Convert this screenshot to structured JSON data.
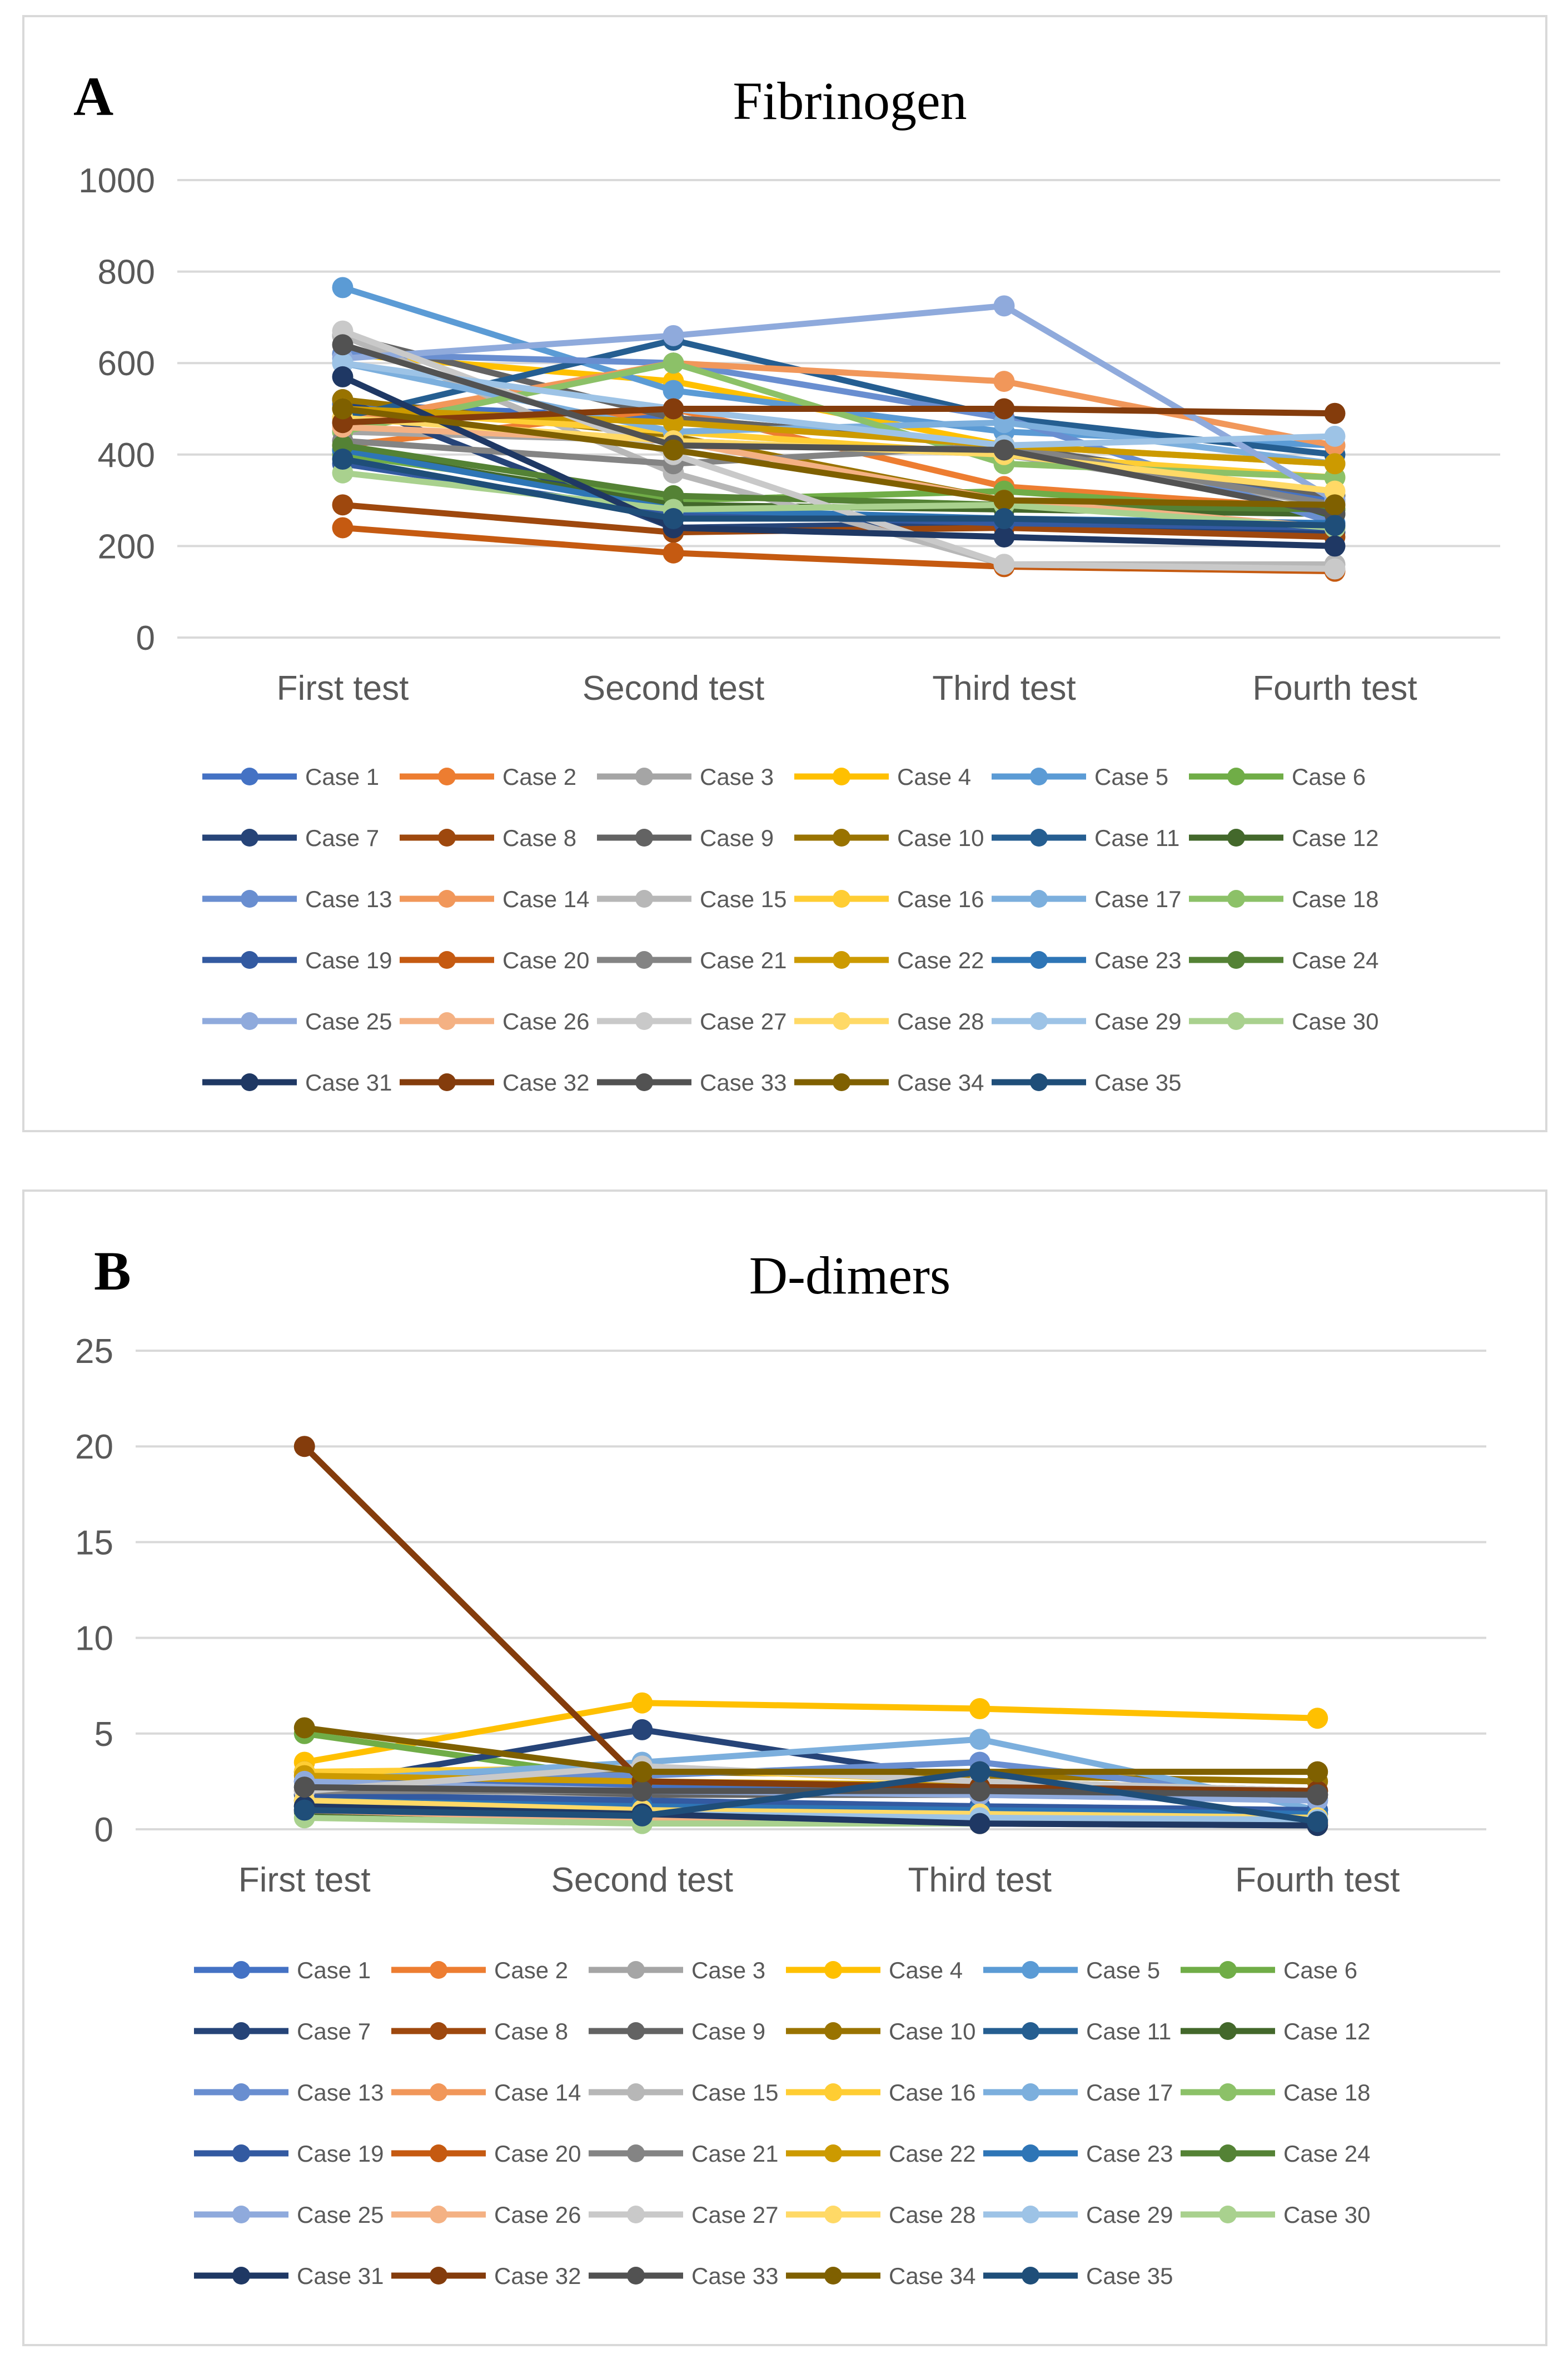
{
  "figure": {
    "panel_a_letter": "A",
    "panel_b_letter": "B"
  },
  "chart_data": [
    {
      "type": "line",
      "title": "Fibrinogen",
      "categories": [
        "First test",
        "Second test",
        "Third test",
        "Fourth test"
      ],
      "xlabel": "",
      "ylabel": "",
      "ylim": [
        0,
        1000
      ],
      "yticks": [
        0,
        200,
        400,
        600,
        800,
        1000
      ],
      "grid": true,
      "legend": "bottom",
      "series": [
        {
          "name": "Case 1",
          "color": "#4472C4",
          "values": [
            510,
            480,
            420,
            300
          ]
        },
        {
          "name": "Case 2",
          "color": "#ED7D31",
          "values": [
            420,
            500,
            330,
            280
          ]
        },
        {
          "name": "Case 3",
          "color": "#A5A5A5",
          "values": [
            450,
            430,
            400,
            290
          ]
        },
        {
          "name": "Case 4",
          "color": "#FFC000",
          "values": [
            620,
            560,
            420,
            380
          ]
        },
        {
          "name": "Case 5",
          "color": "#5B9BD5",
          "values": [
            765,
            540,
            450,
            420
          ]
        },
        {
          "name": "Case 6",
          "color": "#70AD47",
          "values": [
            400,
            300,
            320,
            270
          ]
        },
        {
          "name": "Case 7",
          "color": "#264478",
          "values": [
            520,
            240,
            250,
            230
          ]
        },
        {
          "name": "Case 8",
          "color": "#9E480E",
          "values": [
            290,
            230,
            240,
            220
          ]
        },
        {
          "name": "Case 9",
          "color": "#636363",
          "values": [
            660,
            480,
            420,
            310
          ]
        },
        {
          "name": "Case 10",
          "color": "#997300",
          "values": [
            520,
            440,
            300,
            280
          ]
        },
        {
          "name": "Case 11",
          "color": "#255E91",
          "values": [
            480,
            650,
            480,
            400
          ]
        },
        {
          "name": "Case 12",
          "color": "#43682B",
          "values": [
            410,
            290,
            280,
            270
          ]
        },
        {
          "name": "Case 13",
          "color": "#698ED0",
          "values": [
            620,
            600,
            480,
            250
          ]
        },
        {
          "name": "Case 14",
          "color": "#F1975A",
          "values": [
            470,
            600,
            560,
            420
          ]
        },
        {
          "name": "Case 15",
          "color": "#B7B7B7",
          "values": [
            660,
            360,
            160,
            160
          ]
        },
        {
          "name": "Case 16",
          "color": "#FFCD33",
          "values": [
            500,
            450,
            400,
            350
          ]
        },
        {
          "name": "Case 17",
          "color": "#7CAFDD",
          "values": [
            600,
            450,
            470,
            380
          ]
        },
        {
          "name": "Case 18",
          "color": "#8CC168",
          "values": [
            450,
            600,
            380,
            350
          ]
        },
        {
          "name": "Case 19",
          "color": "#335AA1",
          "values": [
            380,
            270,
            250,
            240
          ]
        },
        {
          "name": "Case 20",
          "color": "#C55A11",
          "values": [
            240,
            185,
            155,
            145
          ]
        },
        {
          "name": "Case 21",
          "color": "#848484",
          "values": [
            430,
            380,
            420,
            290
          ]
        },
        {
          "name": "Case 22",
          "color": "#CC9A00",
          "values": [
            500,
            470,
            420,
            380
          ]
        },
        {
          "name": "Case 23",
          "color": "#2E75B6",
          "values": [
            410,
            280,
            260,
            250
          ]
        },
        {
          "name": "Case 24",
          "color": "#548235",
          "values": [
            420,
            310,
            290,
            280
          ]
        },
        {
          "name": "Case 25",
          "color": "#8FAADC",
          "values": [
            610,
            660,
            725,
            300
          ]
        },
        {
          "name": "Case 26",
          "color": "#F4B183",
          "values": [
            460,
            430,
            300,
            240
          ]
        },
        {
          "name": "Case 27",
          "color": "#C9C9C9",
          "values": [
            670,
            400,
            160,
            150
          ]
        },
        {
          "name": "Case 28",
          "color": "#FFD966",
          "values": [
            480,
            430,
            400,
            320
          ]
        },
        {
          "name": "Case 29",
          "color": "#9DC3E6",
          "values": [
            600,
            500,
            420,
            440
          ]
        },
        {
          "name": "Case 30",
          "color": "#A9D18E",
          "values": [
            360,
            280,
            290,
            240
          ]
        },
        {
          "name": "Case 31",
          "color": "#1F3864",
          "values": [
            570,
            240,
            220,
            200
          ]
        },
        {
          "name": "Case 32",
          "color": "#843C0C",
          "values": [
            470,
            500,
            500,
            490
          ]
        },
        {
          "name": "Case 33",
          "color": "#525252",
          "values": [
            640,
            420,
            410,
            270
          ]
        },
        {
          "name": "Case 34",
          "color": "#7F6000",
          "values": [
            500,
            410,
            300,
            290
          ]
        },
        {
          "name": "Case 35",
          "color": "#1F4E79",
          "values": [
            390,
            260,
            260,
            245
          ]
        }
      ]
    },
    {
      "type": "line",
      "title": "D-dimers",
      "categories": [
        "First test",
        "Second test",
        "Third test",
        "Fourth test"
      ],
      "xlabel": "",
      "ylabel": "",
      "ylim": [
        0,
        25
      ],
      "yticks": [
        0,
        5,
        10,
        15,
        20,
        25
      ],
      "grid": true,
      "legend": "bottom",
      "series": [
        {
          "name": "Case 1",
          "color": "#4472C4",
          "values": [
            2.5,
            2.3,
            2.0,
            1.8
          ]
        },
        {
          "name": "Case 2",
          "color": "#ED7D31",
          "values": [
            2.0,
            0.5,
            0.4,
            0.3
          ]
        },
        {
          "name": "Case 3",
          "color": "#A5A5A5",
          "values": [
            1.5,
            1.2,
            1.0,
            0.8
          ]
        },
        {
          "name": "Case 4",
          "color": "#FFC000",
          "values": [
            3.5,
            6.6,
            6.3,
            5.8
          ]
        },
        {
          "name": "Case 5",
          "color": "#5B9BD5",
          "values": [
            1.0,
            1.1,
            0.8,
            0.5
          ]
        },
        {
          "name": "Case 6",
          "color": "#70AD47",
          "values": [
            5.0,
            2.5,
            2.2,
            2.0
          ]
        },
        {
          "name": "Case 7",
          "color": "#264478",
          "values": [
            2.2,
            5.2,
            2.5,
            2.0
          ]
        },
        {
          "name": "Case 8",
          "color": "#9E480E",
          "values": [
            2.5,
            2.0,
            2.0,
            1.8
          ]
        },
        {
          "name": "Case 9",
          "color": "#636363",
          "values": [
            1.8,
            1.8,
            1.8,
            1.6
          ]
        },
        {
          "name": "Case 10",
          "color": "#997300",
          "values": [
            3.0,
            3.0,
            2.8,
            2.5
          ]
        },
        {
          "name": "Case 11",
          "color": "#255E91",
          "values": [
            1.2,
            0.9,
            0.7,
            0.5
          ]
        },
        {
          "name": "Case 12",
          "color": "#43682B",
          "values": [
            0.9,
            0.5,
            0.4,
            0.3
          ]
        },
        {
          "name": "Case 13",
          "color": "#698ED0",
          "values": [
            3.0,
            2.8,
            3.5,
            1.5
          ]
        },
        {
          "name": "Case 14",
          "color": "#F1975A",
          "values": [
            1.0,
            0.5,
            0.3,
            0.3
          ]
        },
        {
          "name": "Case 15",
          "color": "#B7B7B7",
          "values": [
            2.0,
            1.5,
            1.2,
            1.0
          ]
        },
        {
          "name": "Case 16",
          "color": "#FFCD33",
          "values": [
            3.0,
            3.2,
            2.5,
            2.0
          ]
        },
        {
          "name": "Case 17",
          "color": "#7CAFDD",
          "values": [
            2.5,
            3.5,
            4.7,
            1.0
          ]
        },
        {
          "name": "Case 18",
          "color": "#8CC168",
          "values": [
            1.5,
            1.0,
            0.8,
            0.5
          ]
        },
        {
          "name": "Case 19",
          "color": "#335AA1",
          "values": [
            1.8,
            1.5,
            1.2,
            1.0
          ]
        },
        {
          "name": "Case 20",
          "color": "#C55A11",
          "values": [
            1.0,
            0.5,
            0.3,
            0.2
          ]
        },
        {
          "name": "Case 21",
          "color": "#848484",
          "values": [
            2.0,
            2.0,
            2.0,
            1.8
          ]
        },
        {
          "name": "Case 22",
          "color": "#CC9A00",
          "values": [
            2.8,
            2.5,
            2.3,
            2.0
          ]
        },
        {
          "name": "Case 23",
          "color": "#2E75B6",
          "values": [
            1.5,
            1.2,
            1.0,
            0.8
          ]
        },
        {
          "name": "Case 24",
          "color": "#548235",
          "values": [
            1.2,
            0.8,
            0.6,
            0.5
          ]
        },
        {
          "name": "Case 25",
          "color": "#8FAADC",
          "values": [
            2.5,
            2.0,
            1.8,
            1.5
          ]
        },
        {
          "name": "Case 26",
          "color": "#F4B183",
          "values": [
            1.0,
            0.5,
            0.4,
            0.3
          ]
        },
        {
          "name": "Case 27",
          "color": "#C9C9C9",
          "values": [
            2.0,
            3.3,
            2.5,
            2.0
          ]
        },
        {
          "name": "Case 28",
          "color": "#FFD966",
          "values": [
            1.5,
            1.0,
            0.8,
            0.6
          ]
        },
        {
          "name": "Case 29",
          "color": "#9DC3E6",
          "values": [
            1.0,
            0.8,
            0.6,
            0.5
          ]
        },
        {
          "name": "Case 30",
          "color": "#A9D18E",
          "values": [
            0.6,
            0.3,
            0.3,
            0.2
          ]
        },
        {
          "name": "Case 31",
          "color": "#1F3864",
          "values": [
            1.2,
            0.8,
            0.3,
            0.2
          ]
        },
        {
          "name": "Case 32",
          "color": "#843C0C",
          "values": [
            20.0,
            2.5,
            2.2,
            2.0
          ]
        },
        {
          "name": "Case 33",
          "color": "#525252",
          "values": [
            2.2,
            2.0,
            2.0,
            1.8
          ]
        },
        {
          "name": "Case 34",
          "color": "#7F6000",
          "values": [
            5.3,
            3.0,
            3.0,
            3.0
          ]
        },
        {
          "name": "Case 35",
          "color": "#1F4E79",
          "values": [
            1.0,
            0.7,
            3.0,
            0.4
          ]
        }
      ]
    }
  ]
}
